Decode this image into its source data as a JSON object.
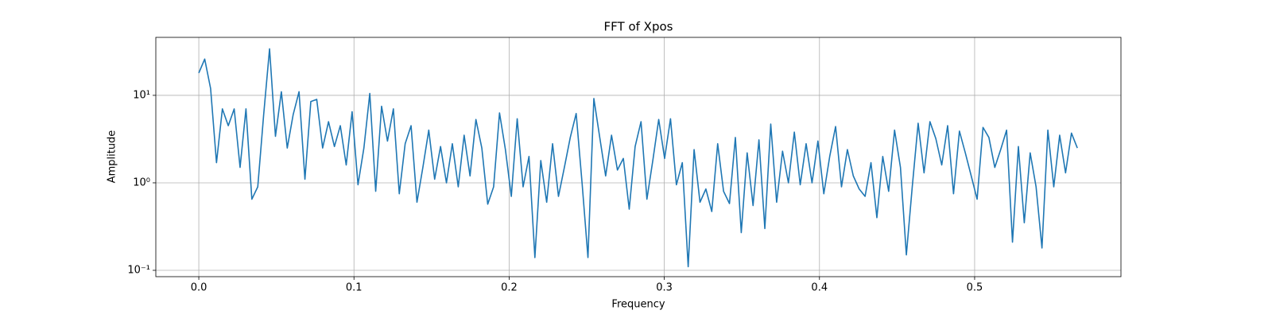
{
  "chart_data": {
    "type": "line",
    "title": "FFT of Xpos",
    "xlabel": "Frequency",
    "ylabel": "Amplitude",
    "yscale": "log",
    "grid": true,
    "xlim": [
      -0.0277,
      0.5943
    ],
    "ylim": [
      0.0846,
      46
    ],
    "xticks": [
      {
        "value": 0,
        "label": "0.0"
      },
      0.1,
      0.2,
      0.3,
      0.4,
      0.5
    ],
    "yticks": [
      {
        "value": 0.1,
        "label": "10⁻¹"
      },
      {
        "value": 1,
        "label": "10⁰"
      },
      {
        "value": 10,
        "label": "10¹"
      }
    ],
    "x": [
      0,
      0.0038,
      0.0076,
      0.0114,
      0.0152,
      0.019,
      0.0228,
      0.0266,
      0.0304,
      0.0342,
      0.038,
      0.0418,
      0.0456,
      0.0494,
      0.0532,
      0.057,
      0.0608,
      0.0646,
      0.0684,
      0.0722,
      0.076,
      0.0798,
      0.0836,
      0.0874,
      0.0912,
      0.095,
      0.0988,
      0.1026,
      0.1064,
      0.1102,
      0.114,
      0.1178,
      0.1216,
      0.1254,
      0.1292,
      0.133,
      0.1368,
      0.1406,
      0.1444,
      0.1482,
      0.152,
      0.1558,
      0.1596,
      0.1634,
      0.1672,
      0.171,
      0.1748,
      0.1786,
      0.1824,
      0.1862,
      0.19,
      0.1938,
      0.1976,
      0.2014,
      0.2052,
      0.209,
      0.2128,
      0.2166,
      0.2204,
      0.2242,
      0.228,
      0.2318,
      0.2356,
      0.2394,
      0.2432,
      0.247,
      0.2508,
      0.2546,
      0.2584,
      0.2622,
      0.266,
      0.2698,
      0.2736,
      0.2774,
      0.2812,
      0.285,
      0.2888,
      0.2926,
      0.2964,
      0.3002,
      0.304,
      0.3078,
      0.3116,
      0.3154,
      0.3192,
      0.323,
      0.3268,
      0.3306,
      0.3344,
      0.3382,
      0.342,
      0.3458,
      0.3496,
      0.3534,
      0.3572,
      0.361,
      0.3648,
      0.3686,
      0.3724,
      0.3762,
      0.38,
      0.3838,
      0.3876,
      0.3914,
      0.3952,
      0.399,
      0.4028,
      0.4066,
      0.4104,
      0.4142,
      0.418,
      0.4218,
      0.4256,
      0.4294,
      0.4332,
      0.437,
      0.4408,
      0.4446,
      0.4484,
      0.4522,
      0.456,
      0.4598,
      0.4636,
      0.4674,
      0.4712,
      0.475,
      0.4788,
      0.4826,
      0.4864,
      0.4902,
      0.494,
      0.4978,
      0.5016,
      0.5054,
      0.5092,
      0.513,
      0.5168,
      0.5206,
      0.5244,
      0.5282,
      0.532,
      0.5358,
      0.5396,
      0.5434,
      0.5472,
      0.551,
      0.5548,
      0.5586,
      0.5624,
      0.5662
    ],
    "series": [
      {
        "color": "#1f77b4",
        "values": [
          18,
          26,
          12,
          1.7,
          7,
          4.5,
          7,
          1.5,
          7,
          0.65,
          0.9,
          6,
          34,
          3.4,
          11,
          2.5,
          6,
          11,
          1.1,
          8.5,
          9,
          2.5,
          5,
          2.6,
          4.5,
          1.6,
          6.5,
          0.95,
          2.5,
          10.5,
          0.8,
          7.5,
          3,
          7,
          0.75,
          2.8,
          4.5,
          0.6,
          1.5,
          4,
          1.1,
          2.6,
          1,
          2.8,
          0.9,
          3.5,
          1.2,
          5.3,
          2.5,
          0.57,
          0.9,
          6.3,
          2.4,
          0.7,
          5.4,
          0.9,
          2,
          0.14,
          1.8,
          0.6,
          2.8,
          0.7,
          1.5,
          3.3,
          6.2,
          1,
          0.14,
          9.2,
          3.3,
          1.2,
          3.5,
          1.4,
          1.9,
          0.5,
          2.6,
          5,
          0.65,
          1.8,
          5.3,
          1.9,
          5.4,
          0.95,
          1.7,
          0.11,
          2.4,
          0.6,
          0.85,
          0.47,
          2.8,
          0.8,
          0.58,
          3.3,
          0.27,
          2.2,
          0.55,
          3.1,
          0.3,
          4.7,
          0.6,
          2.3,
          1,
          3.8,
          0.95,
          2.8,
          1,
          3,
          0.75,
          2,
          4.4,
          0.9,
          2.4,
          1.2,
          0.85,
          0.7,
          1.7,
          0.4,
          2,
          0.8,
          4,
          1.5,
          0.15,
          0.9,
          4.8,
          1.3,
          5,
          3.2,
          1.6,
          4.5,
          0.75,
          3.9,
          2.2,
          1.2,
          0.65,
          4.3,
          3.3,
          1.5,
          2.4,
          4,
          0.21,
          2.6,
          0.35,
          2.2,
          0.9,
          0.18,
          4,
          0.9,
          3.5,
          1.3,
          3.7,
          2.5
        ]
      }
    ]
  }
}
